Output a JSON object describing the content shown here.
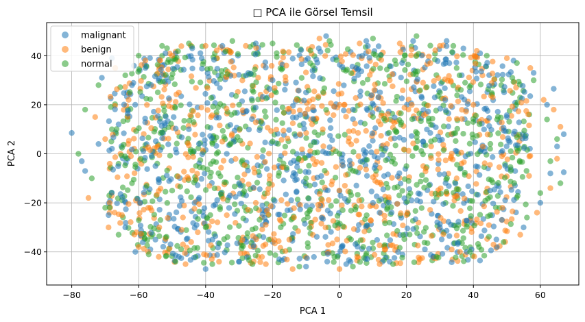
{
  "chart_data": {
    "type": "scatter",
    "title": "□ PCA ile Görsel Temsil",
    "xlabel": "PCA 1",
    "ylabel": "PCA 2",
    "xlim": [
      -87.5,
      71.5
    ],
    "ylim": [
      -53.5,
      53.5
    ],
    "xticks": [
      -80,
      -60,
      -40,
      -20,
      0,
      20,
      40,
      60
    ],
    "yticks": [
      -40,
      -20,
      0,
      20,
      40
    ],
    "grid": true,
    "legend_position": "top-left",
    "marker_alpha": 0.55,
    "cloud_extent": {
      "x_half_width": 68,
      "y_half_height": 46,
      "x_center": -6
    },
    "series": [
      {
        "name": "malignant",
        "color": "#1f77b4",
        "points": [
          [
            -80,
            8.5
          ],
          [
            -77,
            -3
          ],
          [
            -76,
            -7
          ],
          [
            -72,
            4
          ],
          [
            -71,
            31
          ],
          [
            -69,
            -25
          ],
          [
            -68,
            39
          ],
          [
            -66,
            12
          ],
          [
            -64,
            -30
          ],
          [
            -62,
            28
          ],
          [
            -61,
            -40
          ],
          [
            -58,
            35
          ],
          [
            -55,
            -35
          ],
          [
            -52,
            41
          ],
          [
            -48,
            -42
          ],
          [
            -44,
            43
          ],
          [
            -40,
            -47
          ],
          [
            -35,
            44
          ],
          [
            -30,
            -44
          ],
          [
            -25,
            45
          ],
          [
            -18,
            -43
          ],
          [
            -10,
            -46
          ],
          [
            -4,
            48
          ],
          [
            2,
            -45
          ],
          [
            8,
            46
          ],
          [
            15,
            -44
          ],
          [
            22,
            46
          ],
          [
            28,
            -42
          ],
          [
            32,
            46
          ],
          [
            38,
            -40
          ],
          [
            42,
            41
          ],
          [
            47,
            -38
          ],
          [
            52,
            38
          ],
          [
            55,
            -30
          ],
          [
            58,
            33
          ],
          [
            60,
            -20
          ],
          [
            62,
            20
          ],
          [
            63,
            -8
          ],
          [
            64,
            26.5
          ],
          [
            65,
            3
          ],
          [
            67,
            8
          ],
          [
            67,
            -7.5
          ],
          [
            -45,
            10
          ],
          [
            -30,
            -12
          ],
          [
            -10,
            25
          ],
          [
            10,
            -20
          ],
          [
            25,
            5
          ],
          [
            45,
            -15
          ],
          [
            -20,
            30
          ],
          [
            5,
            35
          ],
          [
            30,
            -30
          ],
          [
            -55,
            -5
          ],
          [
            50,
            15
          ]
        ]
      },
      {
        "name": "benign",
        "color": "#ff7f0e",
        "points": [
          [
            -75,
            -18
          ],
          [
            -73,
            15
          ],
          [
            -70,
            6
          ],
          [
            -69,
            -30
          ],
          [
            -67,
            35
          ],
          [
            -65,
            -25
          ],
          [
            -63,
            22
          ],
          [
            -60,
            -38
          ],
          [
            -58,
            38
          ],
          [
            -54,
            -42
          ],
          [
            -50,
            40
          ],
          [
            -46,
            -45
          ],
          [
            -40,
            44
          ],
          [
            -36,
            -44
          ],
          [
            -28,
            44
          ],
          [
            -22,
            -45
          ],
          [
            -14,
            -47
          ],
          [
            -6,
            47
          ],
          [
            0,
            -47
          ],
          [
            6,
            45
          ],
          [
            12,
            -45
          ],
          [
            18,
            45
          ],
          [
            24,
            -43
          ],
          [
            30,
            44
          ],
          [
            36,
            -40
          ],
          [
            41,
            42
          ],
          [
            46,
            -37
          ],
          [
            50,
            39
          ],
          [
            54,
            -33
          ],
          [
            57,
            35
          ],
          [
            59,
            -24
          ],
          [
            61,
            22
          ],
          [
            63,
            -14
          ],
          [
            64,
            18
          ],
          [
            65,
            -2
          ],
          [
            66,
            11
          ],
          [
            -48,
            25
          ],
          [
            -25,
            -20
          ],
          [
            -5,
            10
          ],
          [
            15,
            30
          ],
          [
            35,
            -10
          ],
          [
            -35,
            5
          ],
          [
            20,
            -25
          ],
          [
            40,
            20
          ],
          [
            -15,
            -35
          ],
          [
            0,
            20
          ]
        ]
      },
      {
        "name": "normal",
        "color": "#2ca02c",
        "points": [
          [
            -78,
            0
          ],
          [
            -76,
            18
          ],
          [
            -74,
            -10
          ],
          [
            -72,
            28
          ],
          [
            -70,
            -22
          ],
          [
            -68,
            10
          ],
          [
            -66,
            -33
          ],
          [
            -64,
            32
          ],
          [
            -62,
            -12
          ],
          [
            -60,
            40
          ],
          [
            -57,
            -41
          ],
          [
            -53,
            44
          ],
          [
            -49,
            -44
          ],
          [
            -45,
            45
          ],
          [
            -38,
            -45
          ],
          [
            -32,
            46
          ],
          [
            -26,
            -45
          ],
          [
            -20,
            45
          ],
          [
            -12,
            -46
          ],
          [
            -3,
            46
          ],
          [
            4,
            -46
          ],
          [
            10,
            47
          ],
          [
            16,
            -45
          ],
          [
            23,
            48
          ],
          [
            29,
            -42
          ],
          [
            34,
            44
          ],
          [
            39,
            -40
          ],
          [
            44,
            40
          ],
          [
            49,
            -36
          ],
          [
            53,
            37
          ],
          [
            56,
            -26
          ],
          [
            58,
            30
          ],
          [
            60,
            -16
          ],
          [
            62,
            14
          ],
          [
            63,
            -3
          ],
          [
            65,
            6
          ],
          [
            66,
            -12
          ],
          [
            -50,
            -15
          ],
          [
            -30,
            20
          ],
          [
            -10,
            -10
          ],
          [
            10,
            15
          ],
          [
            30,
            25
          ],
          [
            45,
            -25
          ],
          [
            -40,
            -30
          ],
          [
            20,
            -5
          ],
          [
            0,
            0
          ],
          [
            -20,
            5
          ],
          [
            35,
            35
          ]
        ]
      }
    ]
  }
}
